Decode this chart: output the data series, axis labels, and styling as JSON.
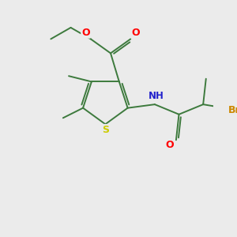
{
  "bg_color": "#ebebeb",
  "bond_color": "#3d7a3d",
  "atom_colors": {
    "O": "#ff0000",
    "N": "#2222cc",
    "S": "#cccc00",
    "Br": "#cc8800",
    "H": "#888888",
    "C": "#3d7a3d"
  },
  "figsize": [
    3.0,
    3.0
  ],
  "dpi": 100,
  "lw": 1.4
}
